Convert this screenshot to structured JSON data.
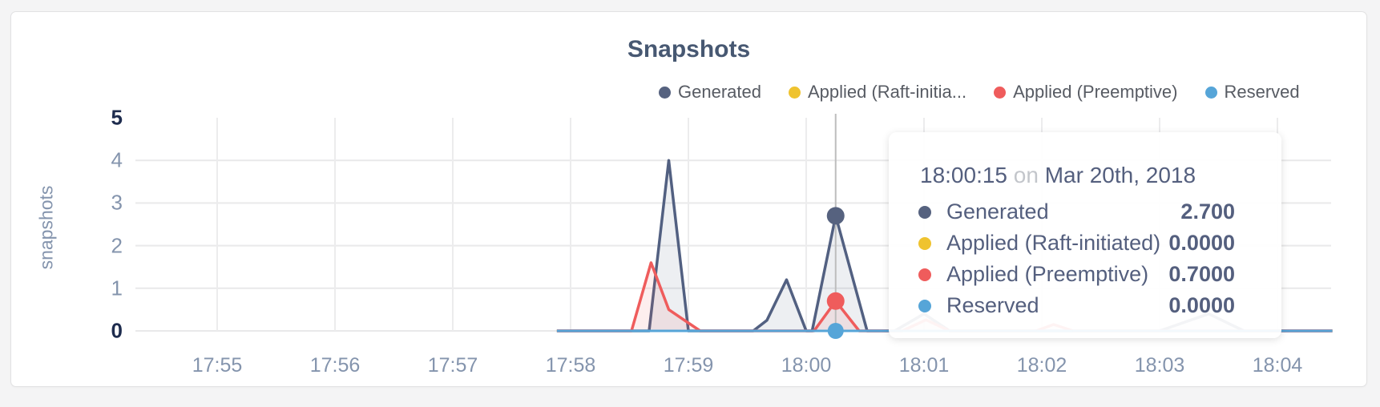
{
  "page": {
    "background": "#f4f4f5"
  },
  "chart_data": {
    "type": "area",
    "title": "Snapshots",
    "ylabel": "snapshots",
    "xlabel": "",
    "x_ticks": [
      "17:55",
      "17:56",
      "17:57",
      "17:58",
      "17:59",
      "18:00",
      "18:01",
      "18:02",
      "18:03",
      "18:04"
    ],
    "y_ticks": [
      "0",
      "1",
      "2",
      "3",
      "4",
      "5"
    ],
    "ylim": [
      0,
      5
    ],
    "grid": true,
    "legend_position": "top-right",
    "x_unit": "seconds after 17:55",
    "series": [
      {
        "name": "Generated",
        "color": "#526081",
        "fill": "rgba(82,96,129,0.10)",
        "width": 3.5,
        "points": [
          [
            173,
            0
          ],
          [
            220,
            0
          ],
          [
            230,
            4.0
          ],
          [
            240,
            0
          ],
          [
            273,
            0
          ],
          [
            280,
            0.25
          ],
          [
            290,
            1.2
          ],
          [
            300,
            0
          ],
          [
            303,
            0
          ],
          [
            315,
            2.7
          ],
          [
            331,
            0
          ],
          [
            345,
            0
          ],
          [
            360,
            0.4
          ],
          [
            373,
            0
          ],
          [
            480,
            0
          ],
          [
            505,
            0.4
          ],
          [
            523,
            0
          ],
          [
            568,
            0
          ]
        ]
      },
      {
        "name": "Applied (Preemptive)",
        "color": "#ef5c5c",
        "fill": "rgba(239,92,92,0.10)",
        "width": 3.5,
        "points": [
          [
            173,
            0
          ],
          [
            211,
            0
          ],
          [
            221,
            1.6
          ],
          [
            230,
            0.5
          ],
          [
            237,
            0.28
          ],
          [
            246,
            0
          ],
          [
            304,
            0
          ],
          [
            315,
            0.7
          ],
          [
            327,
            0
          ],
          [
            349,
            0
          ],
          [
            361,
            0.26
          ],
          [
            373,
            0
          ],
          [
            417,
            0
          ],
          [
            426,
            0.15
          ],
          [
            436,
            0
          ],
          [
            568,
            0
          ]
        ]
      },
      {
        "name": "Applied (Raft-initiated)",
        "color": "#efc32f",
        "fill": null,
        "width": 3,
        "points": [
          [
            173,
            0
          ],
          [
            568,
            0
          ]
        ]
      },
      {
        "name": "Reserved",
        "color": "#56a5d8",
        "fill": null,
        "width": 3,
        "points": [
          [
            173,
            0
          ],
          [
            568,
            0
          ]
        ]
      }
    ],
    "legend": [
      {
        "label": "Generated",
        "color": "#56627f"
      },
      {
        "label": "Applied (Raft-initia...",
        "color": "#efc32f"
      },
      {
        "label": "Applied (Preemptive)",
        "color": "#ef5c5c"
      },
      {
        "label": "Reserved",
        "color": "#56a5d8"
      }
    ],
    "hover": {
      "seconds": 315,
      "line_color": "#bdbdbd",
      "points": [
        {
          "value": 2.7,
          "color": "#56627f",
          "r": 11
        },
        {
          "value": 0.7,
          "color": "#ef5c5c",
          "r": 11
        },
        {
          "value": 0.0,
          "color": "#56a5d8",
          "r": 10
        }
      ]
    }
  },
  "tooltip": {
    "time": "18:00:15",
    "conj": "on",
    "date": "Mar 20th, 2018",
    "rows": [
      {
        "label": "Generated",
        "value": "2.700",
        "color": "#56627f"
      },
      {
        "label": "Applied (Raft-initiated)",
        "value": "0.0000",
        "color": "#efc32f"
      },
      {
        "label": "Applied (Preemptive)",
        "value": "0.7000",
        "color": "#ef5c5c"
      },
      {
        "label": "Reserved",
        "value": "0.0000",
        "color": "#56a5d8"
      }
    ]
  }
}
